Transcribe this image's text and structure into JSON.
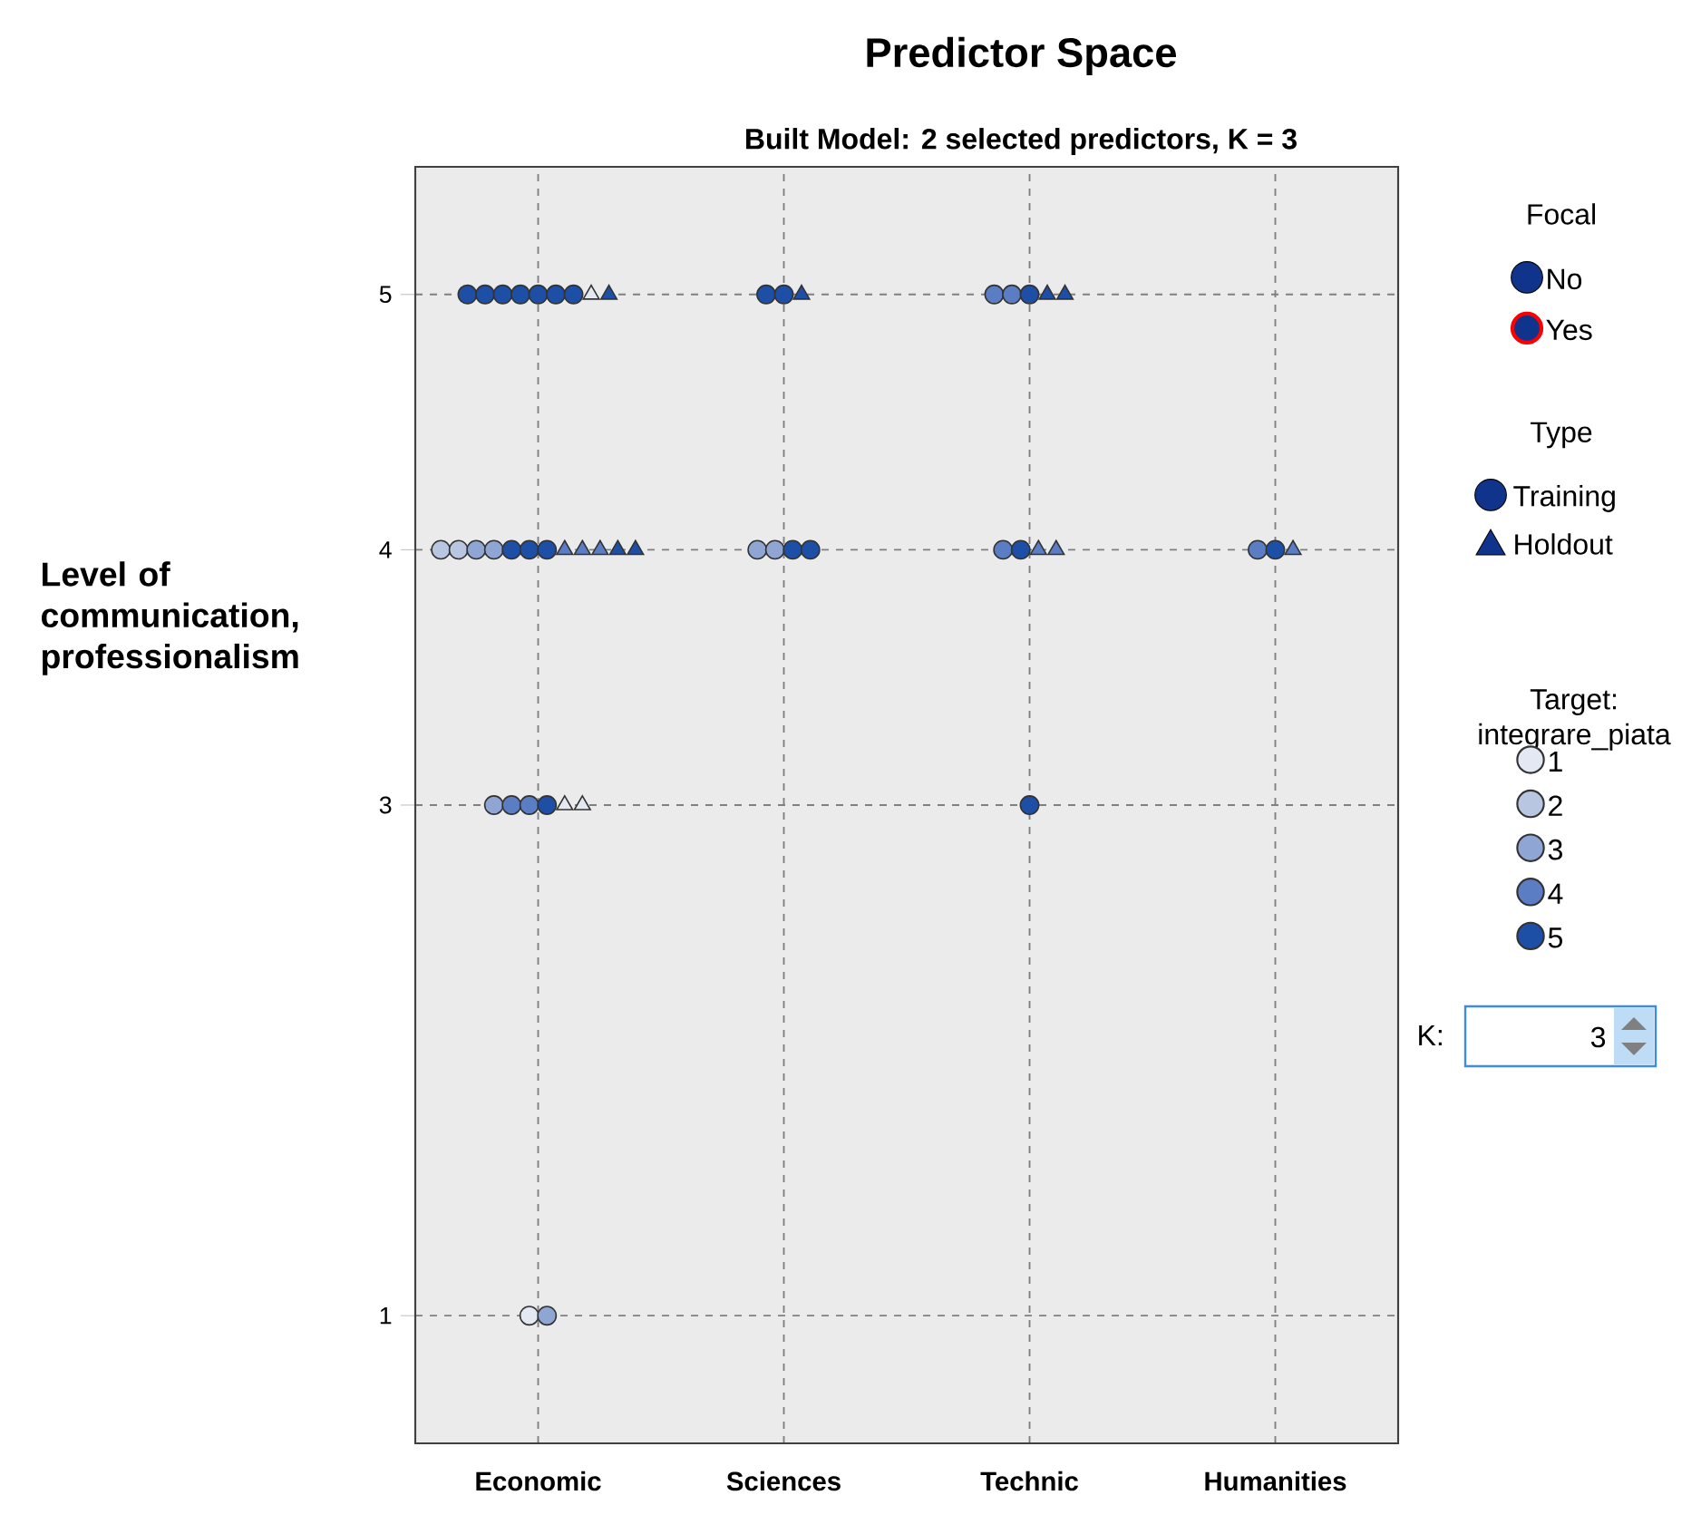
{
  "chart_data": {
    "type": "scatter",
    "title": "Predictor Space",
    "subtitle": "Built Model: 2 selected predictors, K = 3",
    "ylabel": "Level of communication, professionalism",
    "legend_title": "Target: integrare_piata",
    "categories": [
      "Economic",
      "Sciences",
      "Technic",
      "Humanities"
    ],
    "ylim": [
      0.5,
      5.5
    ],
    "yticks": [
      1,
      3,
      4,
      5
    ],
    "grid": true,
    "legend": "right",
    "series": [
      {
        "name": "1",
        "color": "#e3e8f2",
        "marker": "circle",
        "x": [
          "Economic"
        ],
        "values": [
          1
        ]
      },
      {
        "name": "2",
        "color": "#b8c6e2",
        "marker": "circle",
        "x": [
          "Economic",
          "Economic"
        ],
        "values": [
          4,
          4
        ]
      },
      {
        "name": "3",
        "color": "#8fa5d3",
        "marker": "circle",
        "x": [
          "Economic",
          "Economic",
          "Sciences",
          "Sciences",
          "Economic",
          "Economic"
        ],
        "values": [
          4,
          4,
          4,
          4,
          3,
          1
        ]
      },
      {
        "name": "4",
        "color": "#5a7dc4",
        "marker": "circle",
        "x": [
          "Technic",
          "Technic",
          "Technic",
          "Humanities",
          "Economic",
          "Economic"
        ],
        "values": [
          5,
          5,
          4,
          4,
          3,
          3
        ]
      },
      {
        "name": "5",
        "color": "#1d4fa6",
        "marker": "circle",
        "x": [
          "Economic",
          "Economic",
          "Economic",
          "Economic",
          "Economic",
          "Economic",
          "Economic",
          "Sciences",
          "Sciences",
          "Technic",
          "Economic",
          "Economic",
          "Economic",
          "Sciences",
          "Sciences",
          "Technic",
          "Humanities",
          "Economic",
          "Technic"
        ],
        "values": [
          5,
          5,
          5,
          5,
          5,
          5,
          5,
          5,
          5,
          5,
          4,
          4,
          4,
          4,
          4,
          4,
          4,
          3,
          3
        ]
      },
      {
        "color": "#e3e8f2",
        "marker": "triangle",
        "x": [
          "Economic",
          "Economic",
          "Economic"
        ],
        "values": [
          5,
          3,
          3
        ]
      },
      {
        "color": "#5a7dc4",
        "marker": "triangle",
        "x": [
          "Economic",
          "Economic",
          "Economic",
          "Technic",
          "Technic",
          "Humanities"
        ],
        "values": [
          4,
          4,
          4,
          4,
          4,
          4
        ]
      },
      {
        "color": "#1d4fa6",
        "marker": "triangle",
        "x": [
          "Economic",
          "Sciences",
          "Technic",
          "Technic",
          "Economic",
          "Economic"
        ],
        "values": [
          5,
          5,
          5,
          5,
          4,
          4
        ]
      }
    ],
    "annotations": [
      "Focal",
      "No",
      "Yes",
      "Type",
      "Training",
      "Holdout",
      "K:",
      "3"
    ]
  }
}
